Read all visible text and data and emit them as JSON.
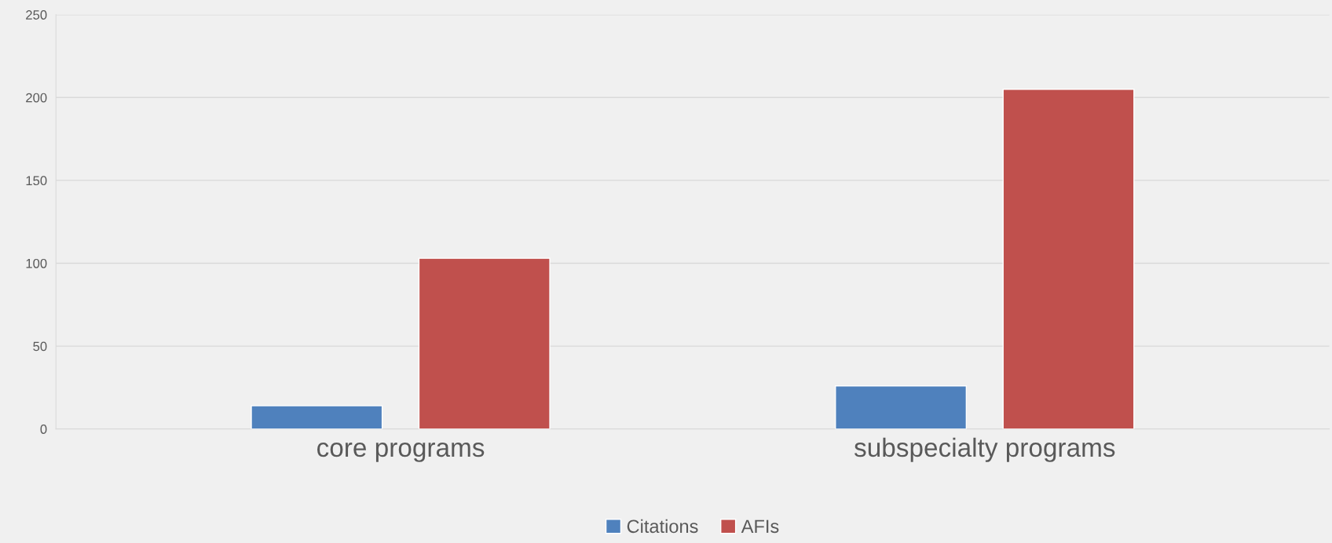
{
  "chart_data": {
    "type": "bar",
    "categories": [
      "core programs",
      "subspecialty programs"
    ],
    "series": [
      {
        "name": "Citations",
        "color": "#4f81bd",
        "values": [
          14,
          26
        ]
      },
      {
        "name": "AFIs",
        "color": "#c0504d",
        "values": [
          103,
          205
        ]
      }
    ],
    "ylim": [
      0,
      250
    ],
    "yticks": [
      0,
      50,
      100,
      150,
      200,
      250
    ],
    "grid": "y",
    "legend": "bottom"
  }
}
